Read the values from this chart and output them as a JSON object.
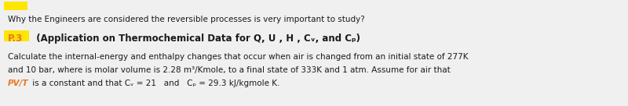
{
  "bg_color": "#f0f0f0",
  "yellow_color": "#FFE600",
  "font_color": "#1a1a1a",
  "orange_color": "#E87722",
  "line1": "Why the Engineers are considered the reversible processes is very important to study?",
  "line2_prefix": "P.3",
  "line2_main": "  (Application on Thermochemical Data for Q, U , H , Cᵥ, and Cₚ)",
  "line3": "Calculate the internal-energy and enthalpy changes that occur when air is changed from an initial state of 277K",
  "line4": "and 10 bar, where is molar volume is 2.28 m³/Kmole, to a final state of 333K and 1 atm. Assume for air that",
  "line5_italic": "PV/T",
  "line5_rest": " is a constant and that Cᵥ = 21   and   Cₚ = 29.3 kJ/kgmole K.",
  "font_size": 7.5,
  "font_size_h": 8.5
}
